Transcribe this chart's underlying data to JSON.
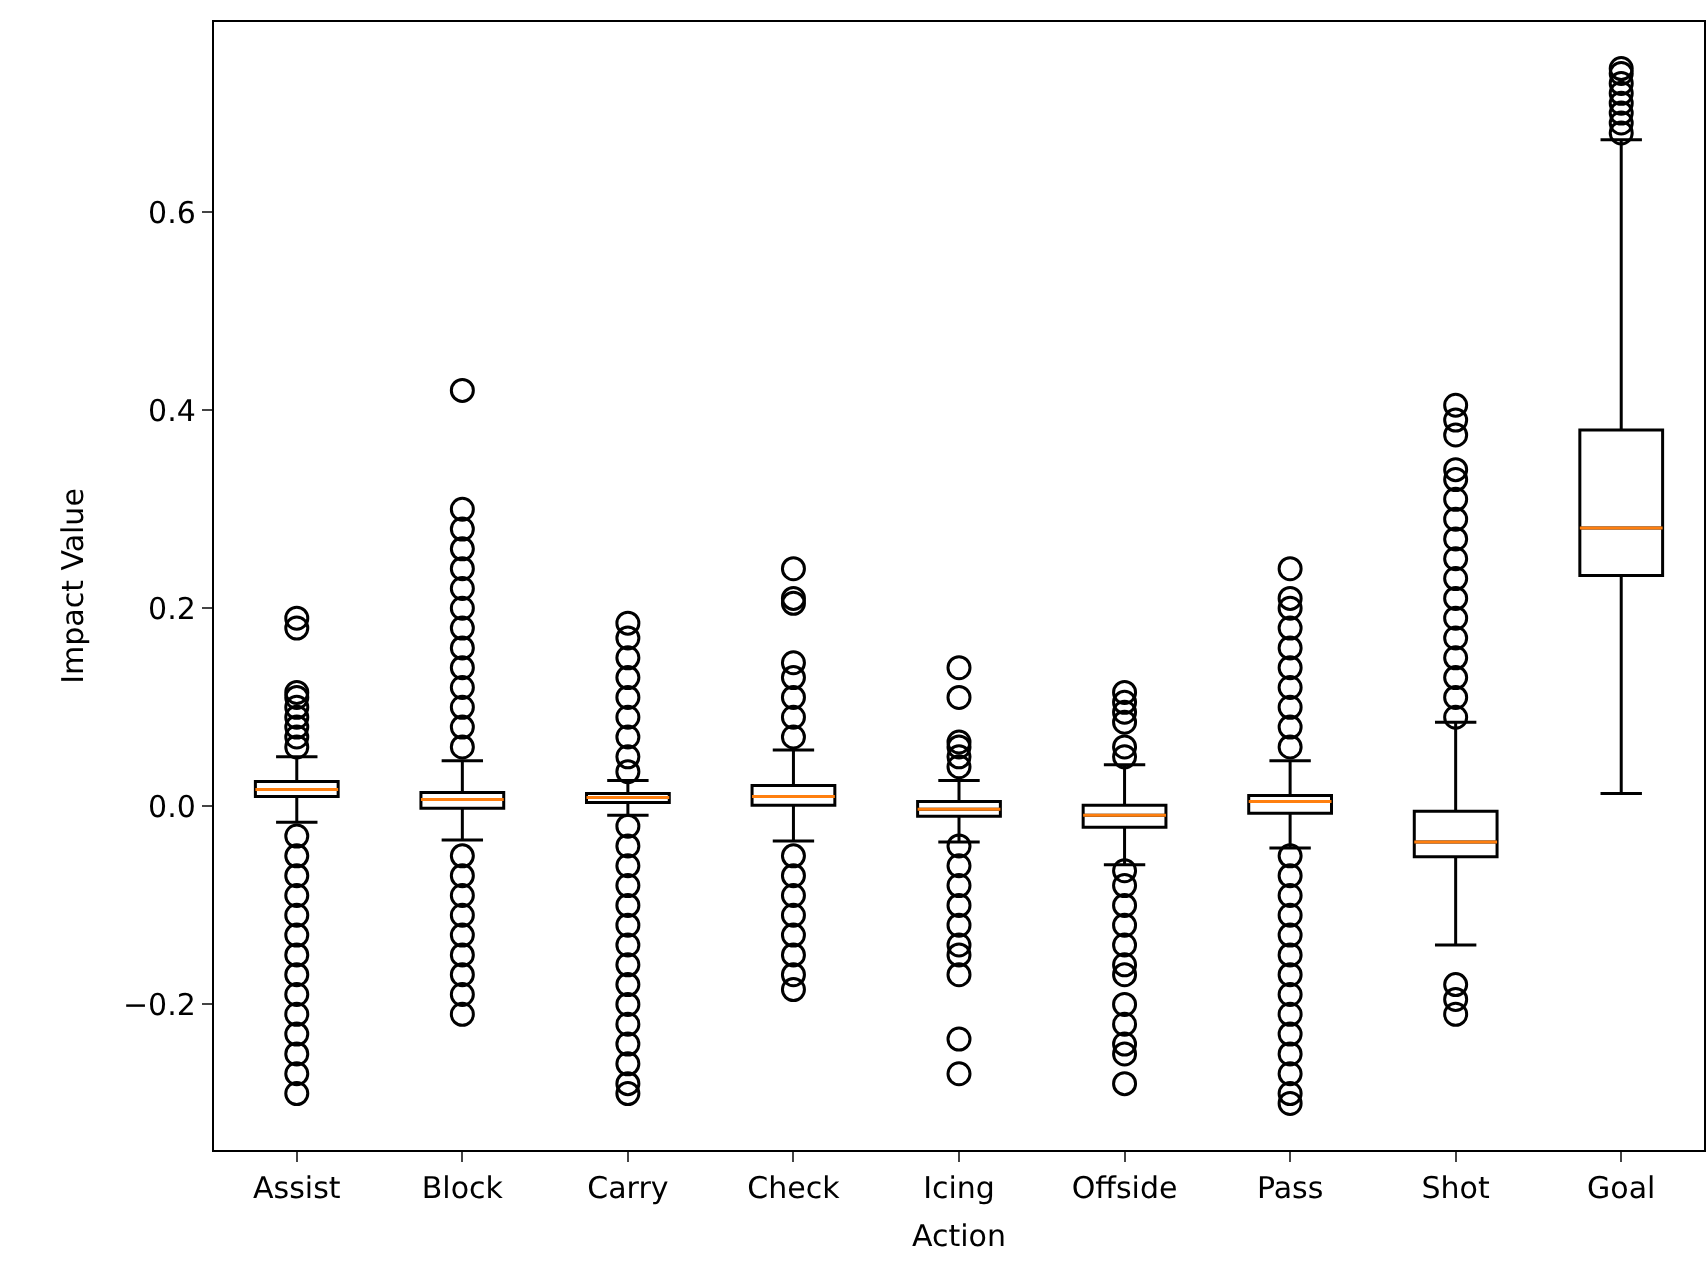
{
  "chart_data": {
    "type": "box",
    "xlabel": "Action",
    "ylabel": "Impact Value",
    "categories": [
      "Assist",
      "Block",
      "Carry",
      "Check",
      "Icing",
      "Offside",
      "Pass",
      "Shot",
      "Goal"
    ],
    "ylim": [
      -0.347,
      0.792
    ],
    "yticks": [
      {
        "value": -0.2,
        "label": "−0.2"
      },
      {
        "value": 0,
        "label": "0.0"
      },
      {
        "value": 0.2,
        "label": "0.2"
      },
      {
        "value": 0.4,
        "label": "0.4"
      },
      {
        "value": 0.6,
        "label": "0.6"
      }
    ],
    "series": [
      {
        "color": "#000000",
        "boxes": [
          {
            "low": -0.016,
            "q1": 0.01,
            "median": 0.017,
            "q3": 0.025,
            "high": 0.05,
            "outliers": [
              0.06,
              0.07,
              0.08,
              0.09,
              0.1,
              0.11,
              0.115,
              0.18,
              0.19,
              -0.03,
              -0.05,
              -0.07,
              -0.09,
              -0.11,
              -0.13,
              -0.15,
              -0.17,
              -0.19,
              -0.21,
              -0.23,
              -0.25,
              -0.27,
              -0.29
            ]
          },
          {
            "low": -0.034,
            "q1": -0.002,
            "median": 0.007,
            "q3": 0.014,
            "high": 0.046,
            "outliers": [
              0.06,
              0.08,
              0.1,
              0.12,
              0.14,
              0.16,
              0.18,
              0.2,
              0.22,
              0.24,
              0.26,
              0.28,
              0.3,
              0.42,
              -0.05,
              -0.07,
              -0.09,
              -0.11,
              -0.13,
              -0.15,
              -0.17,
              -0.19,
              -0.21
            ]
          },
          {
            "low": -0.009,
            "q1": 0.004,
            "median": 0.009,
            "q3": 0.013,
            "high": 0.026,
            "outliers": [
              0.035,
              0.05,
              0.07,
              0.09,
              0.11,
              0.13,
              0.15,
              0.17,
              0.185,
              -0.02,
              -0.04,
              -0.06,
              -0.08,
              -0.1,
              -0.12,
              -0.14,
              -0.16,
              -0.18,
              -0.2,
              -0.22,
              -0.24,
              -0.26,
              -0.28,
              -0.29
            ]
          },
          {
            "low": -0.035,
            "q1": 0.001,
            "median": 0.01,
            "q3": 0.021,
            "high": 0.057,
            "outliers": [
              0.07,
              0.09,
              0.11,
              0.13,
              0.145,
              0.205,
              0.21,
              0.24,
              -0.05,
              -0.07,
              -0.09,
              -0.11,
              -0.13,
              -0.15,
              -0.17,
              -0.185
            ]
          },
          {
            "low": -0.036,
            "q1": -0.01,
            "median": -0.003,
            "q3": 0.005,
            "high": 0.026,
            "outliers": [
              0.04,
              0.05,
              0.06,
              0.065,
              0.11,
              0.14,
              -0.04,
              -0.06,
              -0.08,
              -0.1,
              -0.12,
              -0.14,
              -0.15,
              -0.17,
              -0.235,
              -0.27
            ]
          },
          {
            "low": -0.059,
            "q1": -0.021,
            "median": -0.009,
            "q3": 0.001,
            "high": 0.042,
            "outliers": [
              0.05,
              0.06,
              0.085,
              0.095,
              0.105,
              0.115,
              -0.065,
              -0.08,
              -0.1,
              -0.12,
              -0.14,
              -0.16,
              -0.17,
              -0.2,
              -0.22,
              -0.24,
              -0.25,
              -0.28
            ]
          },
          {
            "low": -0.042,
            "q1": -0.007,
            "median": 0.005,
            "q3": 0.011,
            "high": 0.046,
            "outliers": [
              0.06,
              0.08,
              0.1,
              0.12,
              0.14,
              0.16,
              0.18,
              0.2,
              0.21,
              0.24,
              -0.05,
              -0.07,
              -0.09,
              -0.11,
              -0.13,
              -0.15,
              -0.17,
              -0.19,
              -0.21,
              -0.23,
              -0.25,
              -0.27,
              -0.29,
              -0.3
            ]
          },
          {
            "low": -0.14,
            "q1": -0.051,
            "median": -0.036,
            "q3": -0.005,
            "high": 0.085,
            "outliers": [
              0.09,
              0.11,
              0.13,
              0.15,
              0.17,
              0.19,
              0.21,
              0.23,
              0.25,
              0.27,
              0.29,
              0.31,
              0.33,
              0.34,
              0.375,
              0.39,
              0.405,
              -0.18,
              -0.195,
              -0.21
            ]
          },
          {
            "low": 0.013,
            "q1": 0.233,
            "median": 0.281,
            "q3": 0.38,
            "high": 0.673,
            "outliers": [
              0.68,
              0.69,
              0.7,
              0.71,
              0.72,
              0.73,
              0.74,
              0.745
            ]
          }
        ]
      }
    ]
  }
}
